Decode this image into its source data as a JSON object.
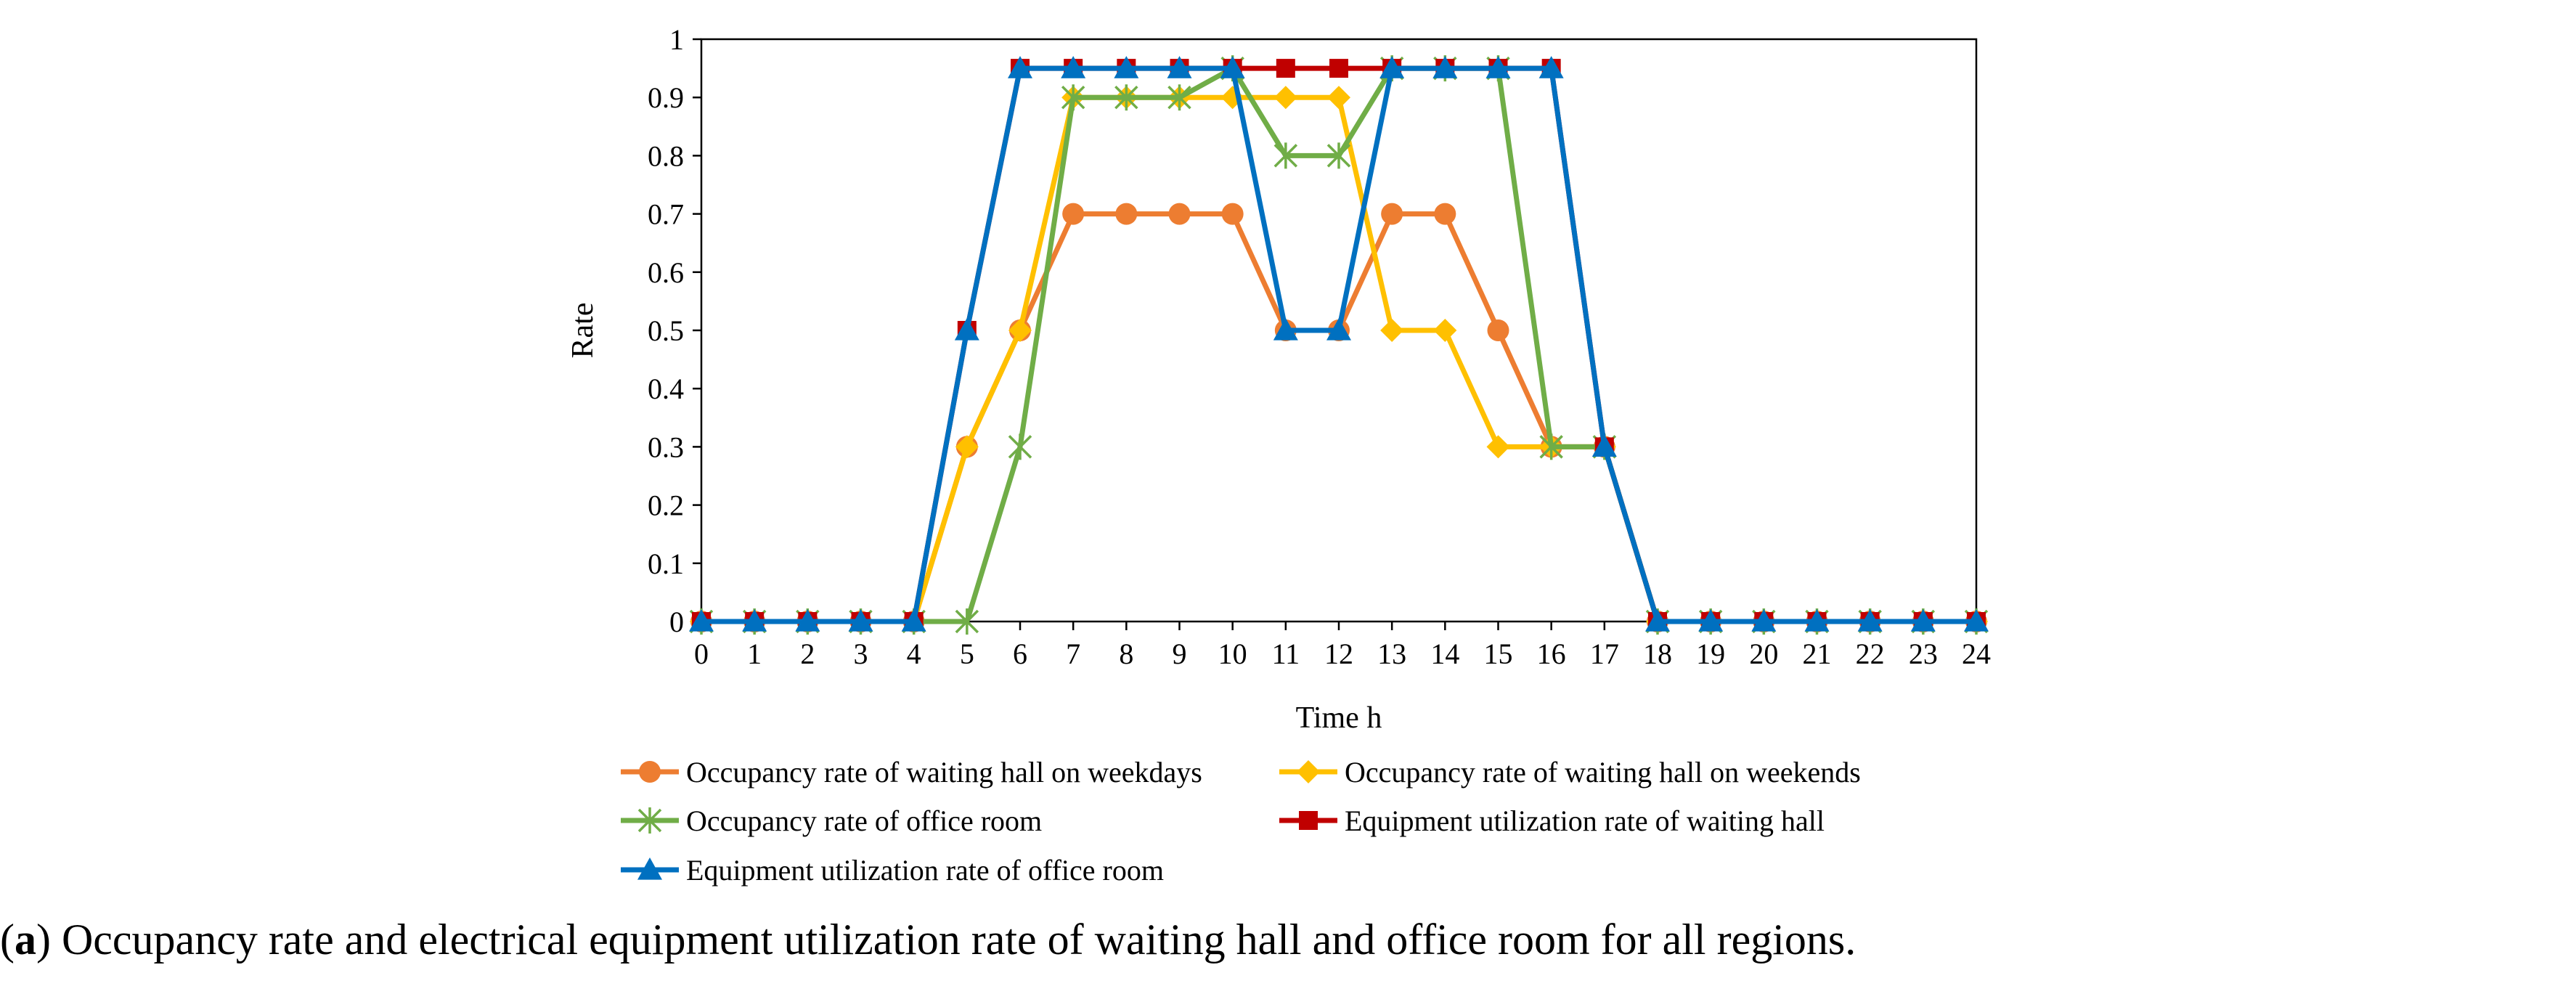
{
  "chart_data": {
    "type": "line",
    "title": "",
    "xlabel": "Time h",
    "ylabel": "Rate",
    "x": [
      0,
      1,
      2,
      3,
      4,
      5,
      6,
      7,
      8,
      9,
      10,
      11,
      12,
      13,
      14,
      15,
      16,
      17,
      18,
      19,
      20,
      21,
      22,
      23,
      24
    ],
    "xticks": [
      "0",
      "1",
      "2",
      "3",
      "4",
      "5",
      "6",
      "7",
      "8",
      "9",
      "10",
      "11",
      "12",
      "13",
      "14",
      "15",
      "16",
      "17",
      "18",
      "19",
      "20",
      "21",
      "22",
      "23",
      "24"
    ],
    "ylim": [
      0,
      1
    ],
    "yticks": [
      "0",
      "0.1",
      "0.2",
      "0.3",
      "0.4",
      "0.5",
      "0.6",
      "0.7",
      "0.8",
      "0.9",
      "1"
    ],
    "grid": false,
    "legend_position": "bottom",
    "series": [
      {
        "name": "Occupancy rate of waiting hall on weekdays",
        "color": "#ED7D31",
        "marker": "circle",
        "values": [
          0,
          0,
          0,
          0,
          0,
          0.3,
          0.5,
          0.7,
          0.7,
          0.7,
          0.7,
          0.5,
          0.5,
          0.7,
          0.7,
          0.5,
          0.3,
          0.3,
          0,
          0,
          0,
          0,
          0,
          0,
          0
        ]
      },
      {
        "name": "Occupancy rate of waiting hall on weekends",
        "color": "#FFC000",
        "marker": "diamond",
        "values": [
          0,
          0,
          0,
          0,
          0,
          0.3,
          0.5,
          0.9,
          0.9,
          0.9,
          0.9,
          0.9,
          0.9,
          0.5,
          0.5,
          0.3,
          0.3,
          0.3,
          0,
          0,
          0,
          0,
          0,
          0,
          0
        ]
      },
      {
        "name": "Occupancy rate of office room",
        "color": "#70AD47",
        "marker": "star",
        "values": [
          0,
          0,
          0,
          0,
          0,
          0,
          0.3,
          0.9,
          0.9,
          0.9,
          0.95,
          0.8,
          0.8,
          0.95,
          0.95,
          0.95,
          0.3,
          0.3,
          0,
          0,
          0,
          0,
          0,
          0,
          0
        ]
      },
      {
        "name": "Equipment utilization rate of waiting hall",
        "color": "#C00000",
        "marker": "square",
        "values": [
          0,
          0,
          0,
          0,
          0,
          0.5,
          0.95,
          0.95,
          0.95,
          0.95,
          0.95,
          0.95,
          0.95,
          0.95,
          0.95,
          0.95,
          0.95,
          0.3,
          0,
          0,
          0,
          0,
          0,
          0,
          0
        ]
      },
      {
        "name": "Equipment utilization rate of office room",
        "color": "#0070C0",
        "marker": "triangle",
        "values": [
          0,
          0,
          0,
          0,
          0,
          0.5,
          0.95,
          0.95,
          0.95,
          0.95,
          0.95,
          0.5,
          0.5,
          0.95,
          0.95,
          0.95,
          0.95,
          0.3,
          0,
          0,
          0,
          0,
          0,
          0,
          0
        ]
      }
    ]
  },
  "caption": {
    "label": "a",
    "text": " Occupancy rate and electrical equipment utilization rate of waiting hall and office room for all regions."
  }
}
